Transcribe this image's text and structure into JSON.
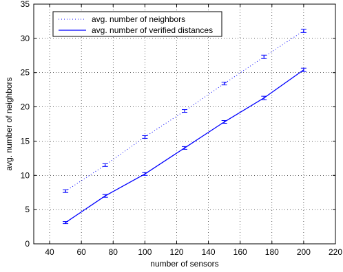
{
  "chart_data": {
    "type": "line",
    "title": "",
    "xlabel": "number of sensors",
    "ylabel": "avg. number of neighbors",
    "xlim": [
      30,
      220
    ],
    "ylim": [
      0,
      35
    ],
    "xticks": [
      40,
      60,
      80,
      100,
      120,
      140,
      160,
      180,
      200,
      220
    ],
    "yticks": [
      0,
      5,
      10,
      15,
      20,
      25,
      30,
      35
    ],
    "grid": true,
    "legend_position": "top-left",
    "x": [
      50,
      75,
      100,
      125,
      150,
      175,
      200
    ],
    "series": [
      {
        "name": "avg. number of neighbors",
        "style": "dotted",
        "color": "#0000ff",
        "values": [
          7.7,
          11.5,
          15.6,
          19.4,
          23.4,
          27.3,
          31.1
        ],
        "errors": [
          0.2,
          0.2,
          0.2,
          0.2,
          0.2,
          0.25,
          0.25
        ]
      },
      {
        "name": "avg. number of verified distances",
        "style": "solid",
        "color": "#0000ff",
        "values": [
          3.1,
          7.0,
          10.2,
          14.0,
          17.8,
          21.3,
          25.4
        ],
        "errors": [
          0.15,
          0.2,
          0.2,
          0.2,
          0.2,
          0.25,
          0.25
        ]
      }
    ]
  }
}
